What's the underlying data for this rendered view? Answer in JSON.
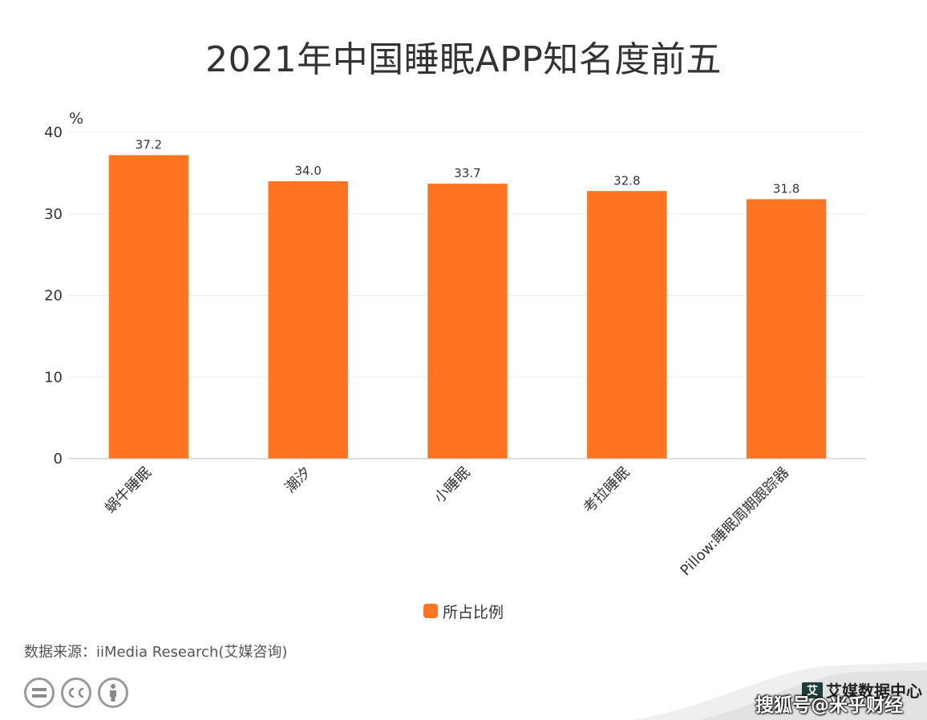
{
  "title": "2021年中国睡眠APP知名度前五",
  "chart_data": {
    "type": "bar",
    "categories": [
      "蜗牛睡眠",
      "潮汐",
      "小睡眠",
      "考拉睡眠",
      "Pillow:睡眠周期跟踪器"
    ],
    "series": [
      {
        "name": "所占比例",
        "values": [
          37.2,
          34.0,
          33.7,
          32.8,
          31.8
        ],
        "labels": [
          "37.2",
          "34.0",
          "33.7",
          "32.8",
          "31.8"
        ]
      }
    ],
    "ylabel": "%",
    "ylim": [
      0,
      40
    ],
    "yticks": [
      0,
      10,
      20,
      30,
      40
    ],
    "grid": true,
    "bar_color": "#ff7420",
    "legend_position": "bottom"
  },
  "legend": {
    "label": "所占比例"
  },
  "source": "数据来源：iiMedia Research(艾媒咨询)",
  "brand": {
    "logo_text": "艾",
    "name": "艾媒数据中心"
  },
  "watermark": "搜狐号@米乎财经",
  "license_icons": [
    "cc-nd-icon",
    "cc-icon",
    "cc-by-icon"
  ]
}
